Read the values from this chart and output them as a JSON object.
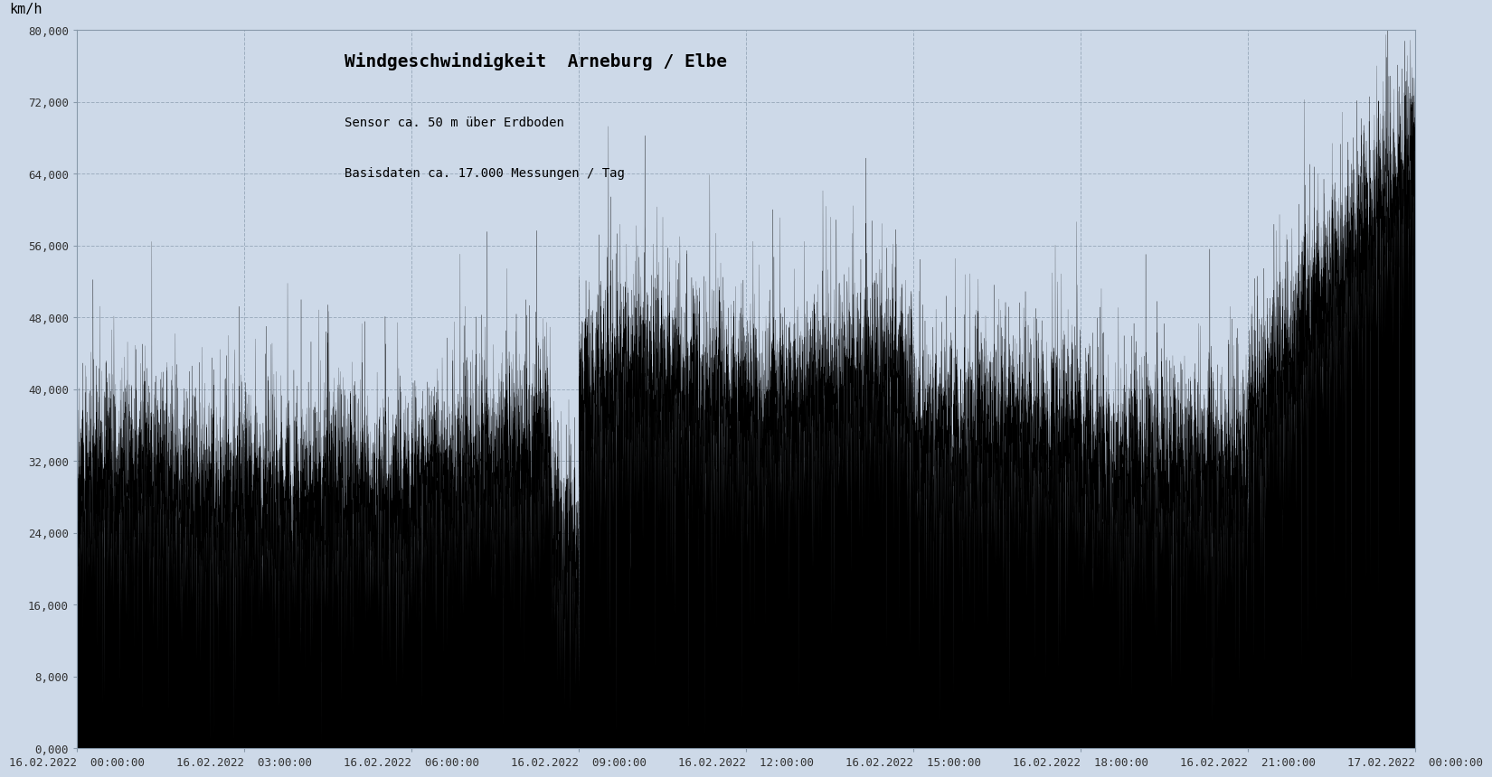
{
  "title": "Windgeschwindigkeit  Arneburg / Elbe",
  "subtitle_line1": "Sensor ca. 50 m über Erdboden",
  "subtitle_line2": "Basisdaten ca. 17.000 Messungen / Tag",
  "ylabel": "km/h",
  "ylim": [
    0,
    80000
  ],
  "yticks": [
    0,
    8000,
    16000,
    24000,
    32000,
    40000,
    48000,
    56000,
    64000,
    72000,
    80000
  ],
  "ytick_labels": [
    "0,000",
    "8,000",
    "16,000",
    "24,000",
    "32,000",
    "40,000",
    "48,000",
    "56,000",
    "64,000",
    "72,000",
    "80,000"
  ],
  "xtick_hours": [
    0,
    3,
    6,
    9,
    12,
    15,
    18,
    21,
    24
  ],
  "xtick_labels": [
    "16.02.2022  00:00:00",
    "16.02.2022  03:00:00",
    "16.02.2022  06:00:00",
    "16.02.2022  09:00:00",
    "16.02.2022  12:00:00",
    "16.02.2022  15:00:00",
    "16.02.2022  18:00:00",
    "16.02.2022  21:00:00",
    "17.02.2022  00:00:00"
  ],
  "background_color": "#cdd9e8",
  "line_color": "#000000",
  "grid_color": "#99aabb",
  "title_fontsize": 14,
  "subtitle_fontsize": 10,
  "ylabel_fontsize": 11,
  "tick_fontsize": 9,
  "n_samples": 17280,
  "seed": 42
}
